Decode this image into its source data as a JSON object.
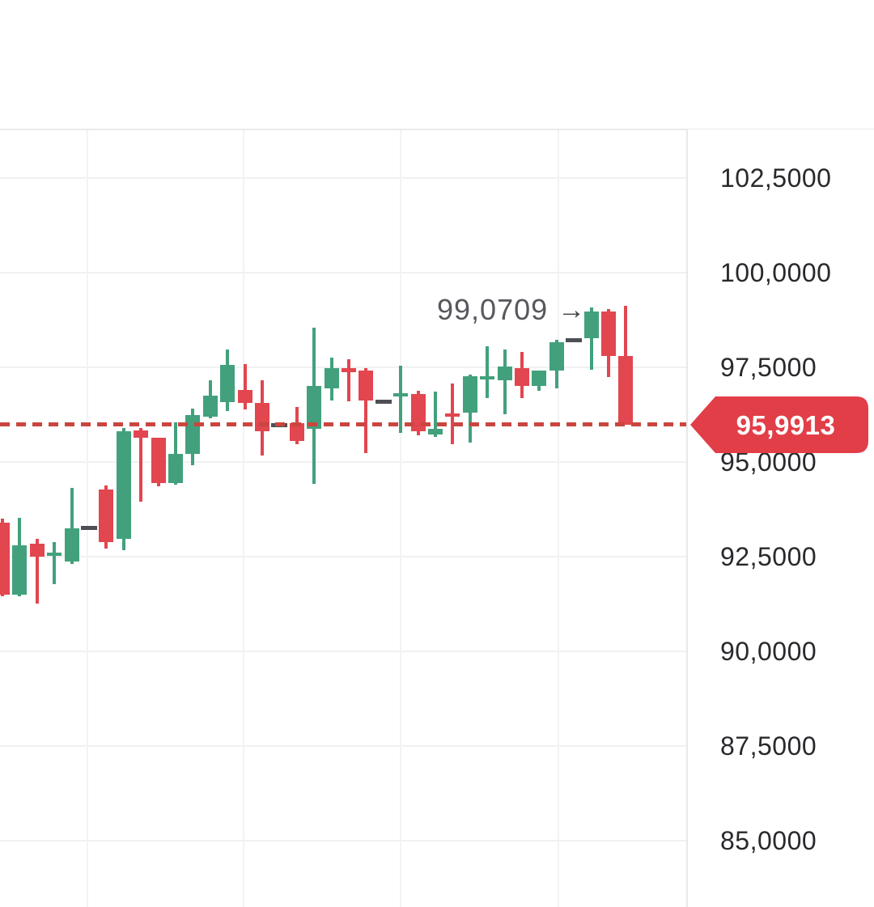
{
  "chart_data": {
    "type": "candlestick",
    "title": "",
    "xlabel": "",
    "ylabel": "",
    "decimal_separator": ",",
    "grid": true,
    "legend_position": "none",
    "price_axis": {
      "side": "right",
      "tick_labels": [
        "102,5000",
        "100,0000",
        "97,5000",
        "95,0000",
        "92,5000",
        "90,0000",
        "87,5000",
        "85,0000"
      ],
      "tick_values": [
        102.5,
        100.0,
        97.5,
        95.0,
        92.5,
        90.0,
        87.5,
        85.0
      ],
      "visible_range": [
        83.5,
        103.8
      ]
    },
    "last_price": {
      "label": "95,9913",
      "value": 95.9913
    },
    "annotation": {
      "text": "99,0709",
      "arrow": "→",
      "value": 99.0709,
      "points_to_candle": 34
    },
    "candles": [
      {
        "o": 93.4,
        "h": 93.5,
        "l": 91.45,
        "c": 91.49,
        "dir": "down"
      },
      {
        "o": 91.5,
        "h": 93.53,
        "l": 91.45,
        "c": 92.8,
        "dir": "up"
      },
      {
        "o": 92.84,
        "h": 92.97,
        "l": 91.26,
        "c": 92.5,
        "dir": "down"
      },
      {
        "o": 92.52,
        "h": 92.88,
        "l": 91.77,
        "c": 92.61,
        "dir": "up"
      },
      {
        "o": 92.37,
        "h": 94.32,
        "l": 92.31,
        "c": 93.25,
        "dir": "up"
      },
      {
        "o": 93.25,
        "h": 93.25,
        "l": 93.25,
        "c": 93.25,
        "dir": "flat"
      },
      {
        "o": 94.27,
        "h": 94.38,
        "l": 92.71,
        "c": 92.88,
        "dir": "down"
      },
      {
        "o": 92.97,
        "h": 95.9,
        "l": 92.67,
        "c": 95.81,
        "dir": "up"
      },
      {
        "o": 95.83,
        "h": 95.9,
        "l": 93.95,
        "c": 95.64,
        "dir": "down"
      },
      {
        "o": 95.64,
        "h": 95.64,
        "l": 94.36,
        "c": 94.44,
        "dir": "down"
      },
      {
        "o": 94.44,
        "h": 96.05,
        "l": 94.4,
        "c": 95.21,
        "dir": "up"
      },
      {
        "o": 95.21,
        "h": 96.41,
        "l": 94.91,
        "c": 96.24,
        "dir": "up"
      },
      {
        "o": 96.2,
        "h": 97.16,
        "l": 96.15,
        "c": 96.75,
        "dir": "up"
      },
      {
        "o": 96.58,
        "h": 97.97,
        "l": 96.35,
        "c": 97.56,
        "dir": "up"
      },
      {
        "o": 96.9,
        "h": 97.59,
        "l": 96.39,
        "c": 96.56,
        "dir": "down"
      },
      {
        "o": 96.56,
        "h": 97.16,
        "l": 95.17,
        "c": 95.81,
        "dir": "down"
      },
      {
        "o": 95.97,
        "h": 95.97,
        "l": 95.97,
        "c": 95.97,
        "dir": "flat"
      },
      {
        "o": 96.03,
        "h": 96.45,
        "l": 95.47,
        "c": 95.56,
        "dir": "down"
      },
      {
        "o": 95.88,
        "h": 98.55,
        "l": 94.42,
        "c": 97.01,
        "dir": "up"
      },
      {
        "o": 96.94,
        "h": 97.76,
        "l": 96.62,
        "c": 97.48,
        "dir": "up"
      },
      {
        "o": 97.48,
        "h": 97.71,
        "l": 96.6,
        "c": 97.37,
        "dir": "down"
      },
      {
        "o": 97.41,
        "h": 97.48,
        "l": 95.24,
        "c": 96.62,
        "dir": "down"
      },
      {
        "o": 96.6,
        "h": 96.6,
        "l": 96.6,
        "c": 96.6,
        "dir": "flat"
      },
      {
        "o": 96.73,
        "h": 97.54,
        "l": 95.77,
        "c": 96.82,
        "dir": "up"
      },
      {
        "o": 96.79,
        "h": 96.88,
        "l": 95.7,
        "c": 95.81,
        "dir": "down"
      },
      {
        "o": 95.73,
        "h": 96.86,
        "l": 95.66,
        "c": 95.88,
        "dir": "up"
      },
      {
        "o": 96.28,
        "h": 97.07,
        "l": 95.47,
        "c": 96.2,
        "dir": "down"
      },
      {
        "o": 96.3,
        "h": 97.31,
        "l": 95.51,
        "c": 97.26,
        "dir": "up"
      },
      {
        "o": 97.18,
        "h": 98.06,
        "l": 96.69,
        "c": 97.26,
        "dir": "up"
      },
      {
        "o": 97.16,
        "h": 97.97,
        "l": 96.26,
        "c": 97.52,
        "dir": "up"
      },
      {
        "o": 97.48,
        "h": 97.91,
        "l": 96.69,
        "c": 97.01,
        "dir": "down"
      },
      {
        "o": 97.01,
        "h": 97.41,
        "l": 96.88,
        "c": 97.41,
        "dir": "up"
      },
      {
        "o": 97.41,
        "h": 98.23,
        "l": 96.94,
        "c": 98.16,
        "dir": "up"
      },
      {
        "o": 98.21,
        "h": 98.21,
        "l": 98.21,
        "c": 98.21,
        "dir": "flat"
      },
      {
        "o": 98.27,
        "h": 99.0709,
        "l": 97.44,
        "c": 98.97,
        "dir": "up"
      },
      {
        "o": 98.97,
        "h": 99.04,
        "l": 97.24,
        "c": 97.8,
        "dir": "down"
      },
      {
        "o": 97.8,
        "h": 99.12,
        "l": 95.9913,
        "c": 95.9913,
        "dir": "down"
      }
    ],
    "colors": {
      "up": "#42a17c",
      "down": "#e2464f",
      "flat": "#4d4f55",
      "last_price_tag": "#e23e48",
      "last_price_line": "#c9463f",
      "grid": "#f1f1f4",
      "border": "#e8e8eb",
      "axis_text": "#29292d",
      "annotation_text": "#57585d"
    }
  }
}
